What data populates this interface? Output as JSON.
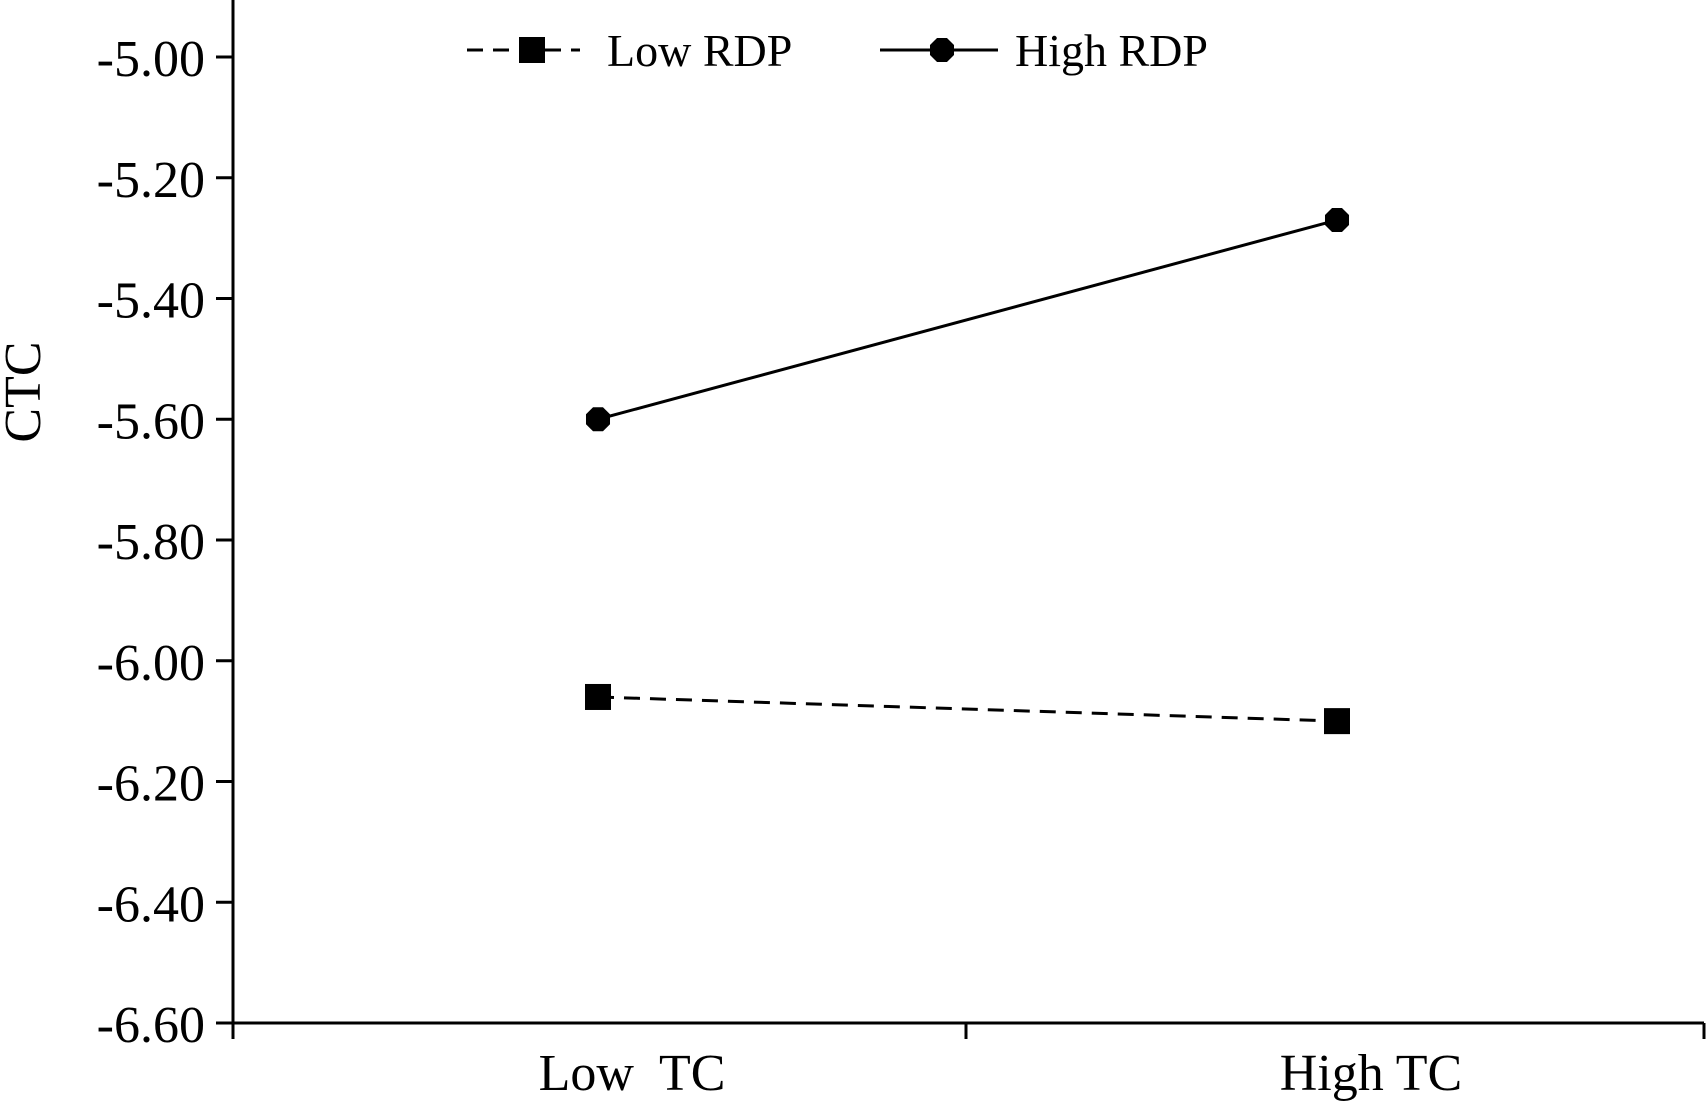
{
  "chart_data": {
    "type": "line",
    "title": "",
    "xlabel": "",
    "ylabel": "CTC",
    "categories": [
      "Low  TC",
      "High TC"
    ],
    "ylim": [
      -6.6,
      -4.92
    ],
    "yticks": [
      -5.0,
      -5.2,
      -5.4,
      -5.6,
      -5.8,
      -6.0,
      -6.2,
      -6.4,
      -6.6
    ],
    "ytick_labels": [
      "-5.00",
      "-5.20",
      "-5.40",
      "-5.60",
      "-5.80",
      "-6.00",
      "-6.20",
      "-6.40",
      "-6.60"
    ],
    "grid": false,
    "legend_position": "top-center",
    "series": [
      {
        "name": "Low RDP",
        "values": [
          -6.06,
          -6.1
        ],
        "line_style": "dashed",
        "marker": "square",
        "color": "#000000"
      },
      {
        "name": "High RDP",
        "values": [
          -5.6,
          -5.27
        ],
        "line_style": "solid",
        "marker": "octagon",
        "color": "#000000"
      }
    ]
  }
}
